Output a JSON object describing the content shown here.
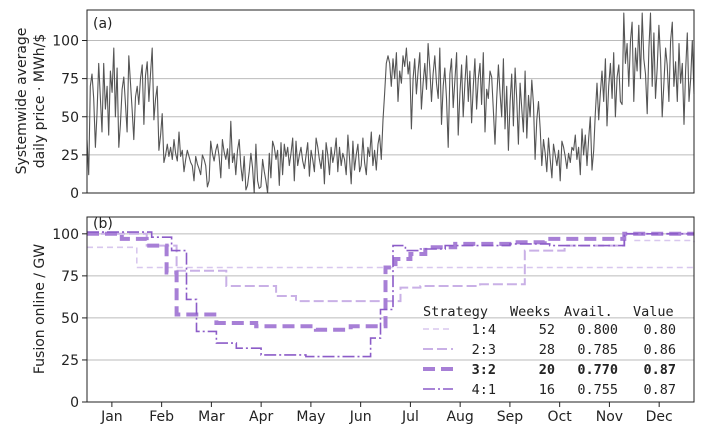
{
  "chart_data": [
    {
      "type": "line",
      "panel_label": "(a)",
      "ylabel": [
        "Systemwide average",
        "daily price · MWh/$"
      ],
      "ylim": [
        0,
        120
      ],
      "yticks": [
        0,
        25,
        50,
        75,
        100
      ],
      "grid": "horizontal",
      "line_color": "#555555",
      "series": [
        {
          "monthly_values": {
            "Jan": [
              35,
              12,
              70,
              78,
              62,
              30,
              52,
              85,
              62,
              40,
              85,
              55,
              70,
              38,
              80,
              66,
              95,
              50,
              82,
              30,
              45,
              68,
              76,
              58,
              40,
              90,
              72,
              55,
              35,
              63
            ],
            "Feb": [
              70,
              58,
              75,
              84,
              45,
              77,
              86,
              60,
              78,
              95,
              48,
              62,
              70,
              28,
              38,
              52,
              20,
              25,
              32,
              24,
              30,
              22,
              35,
              26,
              21,
              40,
              24,
              28
            ],
            "Mar": [
              14,
              22,
              28,
              24,
              20,
              18,
              8,
              24,
              19,
              16,
              12,
              25,
              22,
              18,
              4,
              8,
              34,
              26,
              21,
              28,
              32,
              24,
              10,
              35,
              27,
              22,
              29,
              16,
              47,
              20,
              26
            ],
            "Apr": [
              12,
              28,
              35,
              18,
              8,
              24,
              2,
              5,
              14,
              26,
              17,
              0,
              32,
              8,
              3,
              4,
              22,
              14,
              8,
              0,
              26,
              10,
              34,
              30,
              22,
              28,
              5,
              33,
              12,
              32
            ],
            "May": [
              24,
              30,
              18,
              26,
              36,
              8,
              34,
              18,
              25,
              30,
              21,
              16,
              25,
              33,
              11,
              28,
              22,
              14,
              36,
              30,
              22,
              16,
              28,
              6,
              33,
              25,
              12,
              30,
              20,
              26,
              36
            ],
            "Jun": [
              14,
              30,
              18,
              26,
              22,
              12,
              38,
              23,
              6,
              34,
              15,
              25,
              32,
              14,
              18,
              36,
              20,
              12,
              30,
              24,
              40,
              18,
              28,
              15,
              32,
              38,
              22,
              48,
              65,
              85
            ],
            "Jul": [
              90,
              85,
              70,
              88,
              75,
              92,
              60,
              80,
              72,
              90,
              83,
              95,
              78,
              86,
              42,
              75,
              88,
              65,
              80,
              92,
              55,
              72,
              85,
              68,
              98,
              82,
              60,
              78,
              90,
              72,
              62
            ],
            "Aug": [
              95,
              45,
              70,
              82,
              62,
              30,
              78,
              88,
              56,
              74,
              92,
              38,
              65,
              84,
              50,
              72,
              90,
              60,
              80,
              46,
              70,
              88,
              55,
              75,
              85,
              58,
              92,
              40,
              68,
              62,
              80
            ],
            "Sep": [
              76,
              55,
              32,
              62,
              84,
              66,
              50,
              88,
              42,
              70,
              28,
              60,
              78,
              44,
              82,
              62,
              32,
              72,
              55,
              40,
              80,
              36,
              64,
              50,
              74,
              58,
              22,
              48,
              60,
              42
            ],
            "Oct": [
              18,
              35,
              26,
              14,
              36,
              22,
              10,
              32,
              25,
              18,
              28,
              8,
              34,
              30,
              24,
              16,
              26,
              20,
              30,
              28,
              38,
              22,
              30,
              12,
              42,
              25,
              38,
              18,
              36,
              50,
              15
            ],
            "Nov": [
              28,
              52,
              72,
              48,
              66,
              80,
              60,
              88,
              44,
              70,
              85,
              62,
              92,
              50,
              76,
              84,
              60,
              58,
              118,
              85,
              98,
              70,
              100,
              112,
              60,
              95,
              80,
              110,
              75,
              118
            ],
            "Dec": [
              88,
              78,
              52,
              95,
              118,
              70,
              105,
              62,
              82,
              110,
              88,
              50,
              72,
              95,
              84,
              60,
              100,
              112,
              70,
              86,
              60,
              98,
              72,
              85,
              45,
              80,
              105,
              60,
              75,
              100,
              65
            ]
          }
        }
      ]
    },
    {
      "type": "line",
      "panel_label": "(b)",
      "ylabel": "Fusion online / GW",
      "ylim": [
        0,
        110
      ],
      "yticks": [
        0,
        25,
        50,
        75,
        100
      ],
      "grid": "horizontal",
      "categories": [
        "Jan",
        "Feb",
        "Mar",
        "Apr",
        "May",
        "Jun",
        "Jul",
        "Aug",
        "Sep",
        "Oct",
        "Nov",
        "Dec"
      ],
      "xlim": [
        0,
        12.2
      ],
      "legend_position": "lower-right",
      "legend_header": [
        "Strategy",
        "Weeks",
        "Avail.",
        "Value"
      ],
      "series": [
        {
          "name": "1:4",
          "weeks": "52",
          "avail": "0.800",
          "value": "0.80",
          "color": "#d8c7ee",
          "stroke_width": 1.6,
          "dash": "6,4",
          "bold": false,
          "steps": [
            [
              0,
              92
            ],
            [
              1.0,
              80
            ],
            [
              12.2,
              80
            ]
          ],
          "extra": [
            [
              11.0,
              96
            ],
            [
              12.2,
              95
            ]
          ]
        },
        {
          "name": "2:3",
          "weeks": "28",
          "avail": "0.785",
          "value": "0.86",
          "color": "#c9b0e6",
          "stroke_width": 2.0,
          "dash": "10,4",
          "bold": false,
          "steps": [
            [
              0,
              100
            ],
            [
              1.2,
              93
            ],
            [
              1.8,
              78
            ],
            [
              2.8,
              69
            ],
            [
              3.8,
              63
            ],
            [
              4.2,
              60
            ],
            [
              6.1,
              60
            ],
            [
              6.3,
              68
            ],
            [
              6.7,
              69
            ],
            [
              7.9,
              70
            ],
            [
              8.8,
              90
            ],
            [
              9.6,
              93
            ],
            [
              10.8,
              100
            ],
            [
              12.2,
              100
            ]
          ]
        },
        {
          "name": "3:2",
          "weeks": "20",
          "avail": "0.770",
          "value": "0.87",
          "color": "#a77fd6",
          "stroke_width": 4.0,
          "dash": "12,6",
          "bold": true,
          "steps": [
            [
              0,
              100
            ],
            [
              0.7,
              97
            ],
            [
              1.2,
              93
            ],
            [
              1.6,
              77
            ],
            [
              1.8,
              52
            ],
            [
              2.6,
              47
            ],
            [
              3.4,
              45
            ],
            [
              4.6,
              43
            ],
            [
              5.3,
              45
            ],
            [
              5.9,
              45
            ],
            [
              6.0,
              80
            ],
            [
              6.2,
              85
            ],
            [
              6.5,
              88
            ],
            [
              6.8,
              92
            ],
            [
              7.4,
              94
            ],
            [
              8.6,
              95
            ],
            [
              9.2,
              97
            ],
            [
              10.8,
              100
            ],
            [
              12.2,
              100
            ]
          ]
        },
        {
          "name": "4:1",
          "weeks": "16",
          "avail": "0.755",
          "value": "0.87",
          "color": "#8c5cc8",
          "stroke_width": 1.6,
          "dash": "12,3,2,3",
          "bold": false,
          "steps": [
            [
              0,
              101
            ],
            [
              1.3,
              98
            ],
            [
              1.7,
              90
            ],
            [
              2.0,
              61
            ],
            [
              2.2,
              42
            ],
            [
              2.6,
              35
            ],
            [
              3.0,
              32
            ],
            [
              3.5,
              28
            ],
            [
              4.4,
              27
            ],
            [
              5.6,
              27
            ],
            [
              5.7,
              38
            ],
            [
              5.9,
              55
            ],
            [
              6.15,
              93
            ],
            [
              6.4,
              90
            ],
            [
              6.7,
              91
            ],
            [
              7.2,
              93
            ],
            [
              8.5,
              94
            ],
            [
              9.3,
              93
            ],
            [
              10.8,
              100
            ],
            [
              12.2,
              100
            ]
          ]
        }
      ]
    }
  ]
}
